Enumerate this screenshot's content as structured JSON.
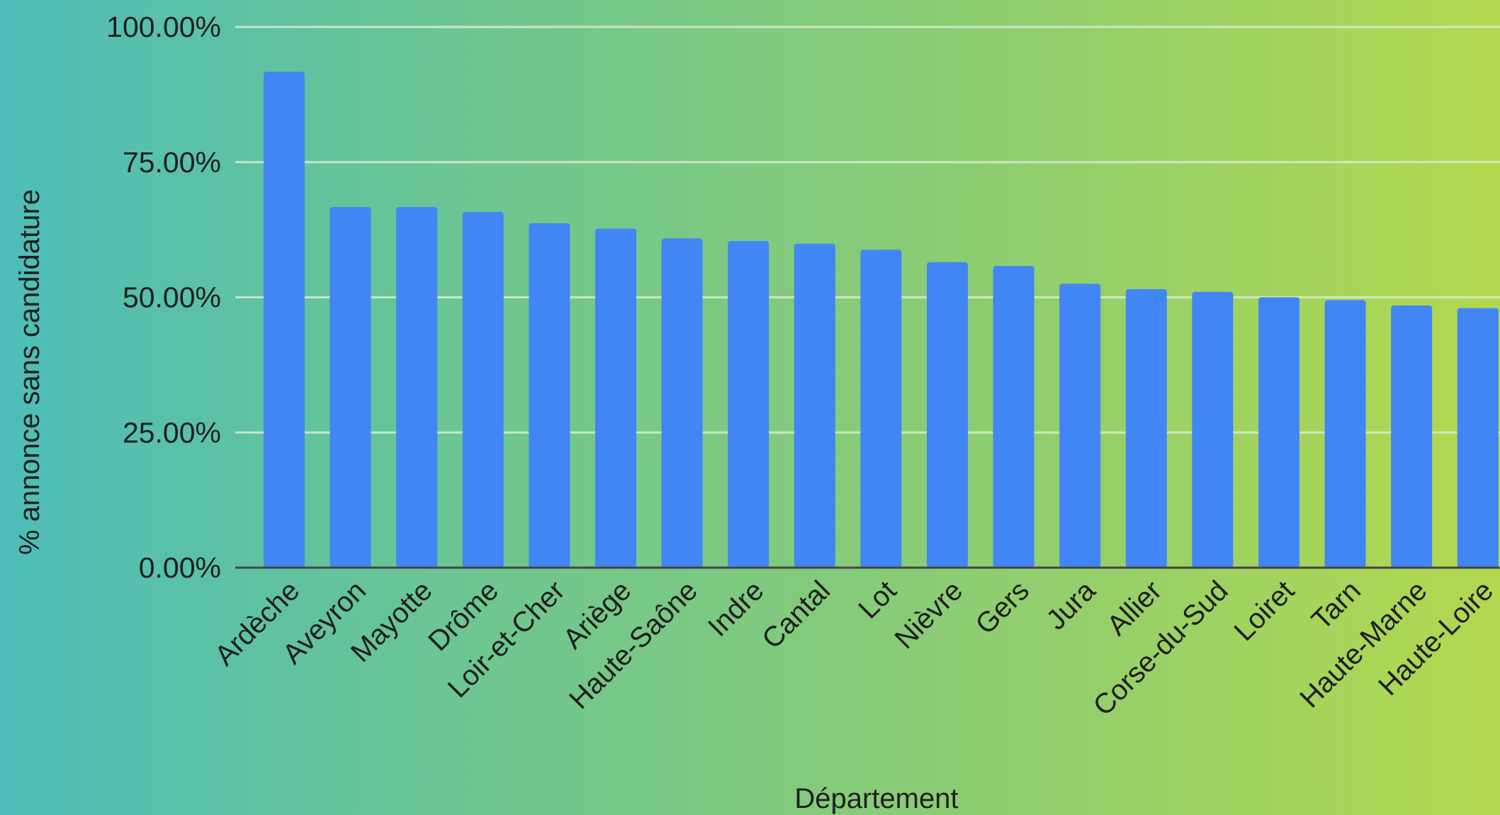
{
  "chart_data": {
    "type": "bar",
    "xlabel": "Département",
    "ylabel": "% annonce sans candidature",
    "ylim": [
      0,
      100
    ],
    "yticks": [
      0,
      25,
      50,
      75,
      100
    ],
    "ytick_labels": [
      "0.00%",
      "25.00%",
      "50.00%",
      "75.00%",
      "100.00%"
    ],
    "grid": true,
    "legend": "none",
    "colors": {
      "bar": "#4285f4",
      "grid": "#d9ecd0",
      "axis": "#444444"
    },
    "categories": [
      "Ardèche",
      "Aveyron",
      "Mayotte",
      "Drôme",
      "Loir-et-Cher",
      "Ariège",
      "Haute-Saône",
      "Indre",
      "Cantal",
      "Lot",
      "Nièvre",
      "Gers",
      "Jura",
      "Allier",
      "Corse-du-Sud",
      "Loiret",
      "Tarn",
      "Haute-Marne",
      "Haute-Loire"
    ],
    "values": [
      91.7,
      66.7,
      66.7,
      65.8,
      63.7,
      62.7,
      60.9,
      60.4,
      59.9,
      58.8,
      56.5,
      55.8,
      52.5,
      51.5,
      51.0,
      50.0,
      49.5,
      48.5,
      48.0
    ]
  }
}
